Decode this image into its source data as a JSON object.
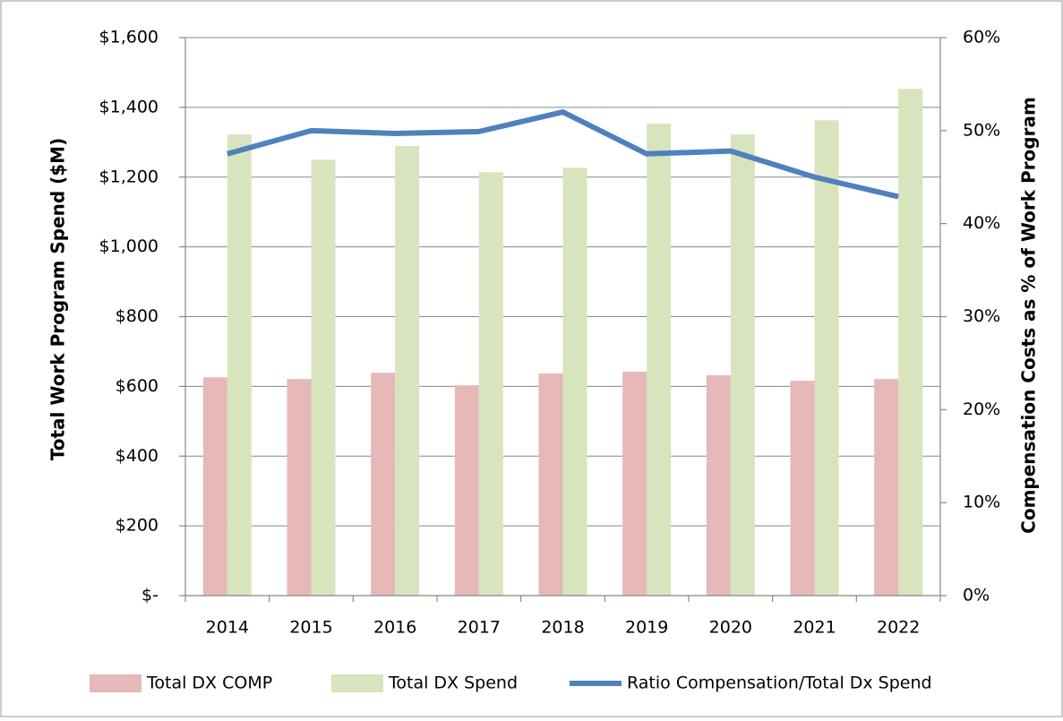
{
  "chart_data": {
    "type": "bar_line",
    "categories": [
      "2014",
      "2015",
      "2016",
      "2017",
      "2018",
      "2019",
      "2020",
      "2021",
      "2022"
    ],
    "series": [
      {
        "name": "Total DX COMP",
        "color": "#e6b9b8",
        "type": "bar",
        "values": [
          626,
          621,
          639,
          603,
          637,
          642,
          632,
          616,
          621
        ]
      },
      {
        "name": "Total DX Spend",
        "color": "#d7e4bd",
        "type": "bar",
        "values": [
          1322,
          1250,
          1289,
          1214,
          1227,
          1353,
          1322,
          1363,
          1453
        ]
      },
      {
        "name": "Ratio Compensation/Total Dx Spend",
        "color": "#4f81bd",
        "type": "line",
        "axis": "y2",
        "values": [
          47.5,
          50.0,
          49.7,
          49.9,
          52.0,
          47.5,
          47.8,
          45.0,
          42.9
        ]
      }
    ],
    "ylabel": "Total Work Program Spend ($M)",
    "y2label": "Compensation Costs as % of Work Program",
    "ylim": [
      0,
      1600
    ],
    "yticks": [
      {
        "value": 0,
        "label": "$-"
      },
      {
        "value": 200,
        "label": "$200"
      },
      {
        "value": 400,
        "label": "$400"
      },
      {
        "value": 600,
        "label": "$600"
      },
      {
        "value": 800,
        "label": "$800"
      },
      {
        "value": 1000,
        "label": "$1,000"
      },
      {
        "value": 1200,
        "label": "$1,200"
      },
      {
        "value": 1400,
        "label": "$1,400"
      },
      {
        "value": 1600,
        "label": "$1,600"
      }
    ],
    "y2lim": [
      0,
      60
    ],
    "y2ticks": [
      {
        "value": 0,
        "label": "0%"
      },
      {
        "value": 10,
        "label": "10%"
      },
      {
        "value": 20,
        "label": "20%"
      },
      {
        "value": 30,
        "label": "30%"
      },
      {
        "value": 40,
        "label": "40%"
      },
      {
        "value": 50,
        "label": "50%"
      },
      {
        "value": 60,
        "label": "60%"
      }
    ],
    "grid": true,
    "legend": "bottom"
  }
}
